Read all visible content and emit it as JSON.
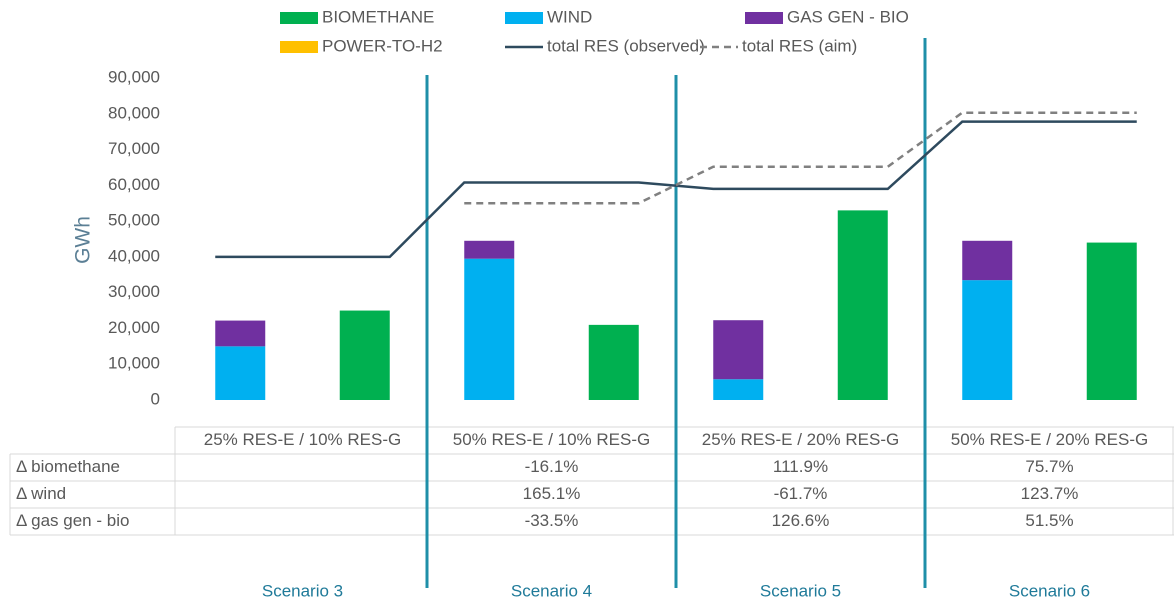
{
  "chart_data": {
    "type": "bar",
    "y_label": "GWh",
    "categories": [
      null,
      null,
      null,
      null,
      null,
      null,
      null,
      null
    ],
    "groups": [
      "25% RES-E / 10% RES-G",
      "50% RES-E / 10% RES-G",
      "25% RES-E / 20% RES-G",
      "50% RES-E / 20% RES-G"
    ],
    "scenarios": [
      "Scenario 3",
      "Scenario 4",
      "Scenario 5",
      "Scenario 6"
    ],
    "ylim": [
      0,
      90000
    ],
    "yticks": [
      0,
      {
        "value": 10000,
        "label": "10,000"
      },
      {
        "value": 20000,
        "label": "20,000"
      },
      {
        "value": 30000,
        "label": "30,000"
      },
      {
        "value": 40000,
        "label": "40,000"
      },
      {
        "value": 50000,
        "label": "50,000"
      },
      {
        "value": 60000,
        "label": "60,000"
      },
      {
        "value": 70000,
        "label": "70,000"
      },
      {
        "value": 80000,
        "label": "80,000"
      },
      {
        "value": 90000,
        "label": "90,000"
      }
    ],
    "series": [
      {
        "name": "BIOMETHANE",
        "color": "#00b050",
        "kind": "bar",
        "values": [
          null,
          25000,
          null,
          21000,
          null,
          53000,
          null,
          44000
        ]
      },
      {
        "name": "WIND",
        "color": "#00b0f0",
        "kind": "bar",
        "values": [
          15000,
          null,
          39500,
          null,
          5800,
          null,
          33500,
          null
        ]
      },
      {
        "name": "GAS GEN - BIO",
        "color": "#7030a0",
        "kind": "bar",
        "values": [
          7200,
          null,
          5000,
          null,
          16500,
          null,
          11000,
          null
        ]
      },
      {
        "name": "POWER-TO-H2",
        "color": "#ffc000",
        "kind": "bar",
        "values": [
          null,
          null,
          null,
          null,
          null,
          null,
          null,
          null
        ]
      },
      {
        "name": "total RES (observed)",
        "color": "#2e4a5e",
        "kind": "line",
        "dashed": false,
        "values": [
          40000,
          40000,
          60800,
          60800,
          59000,
          59000,
          77800,
          77800
        ]
      },
      {
        "name": "total RES (aim)",
        "color": "#808080",
        "kind": "line",
        "dashed": true,
        "values": [
          null,
          null,
          55000,
          55000,
          65200,
          65200,
          80300,
          80300
        ]
      }
    ],
    "table": [
      {
        "label": "Δ biomethane",
        "cells": [
          null,
          "-16.1%",
          "111.9%",
          "75.7%"
        ]
      },
      {
        "label": "Δ wind",
        "cells": [
          null,
          "165.1%",
          "-61.7%",
          "123.7%"
        ]
      },
      {
        "label": "Δ gas gen - bio",
        "cells": [
          null,
          "-33.5%",
          "126.6%",
          "51.5%"
        ]
      }
    ]
  }
}
